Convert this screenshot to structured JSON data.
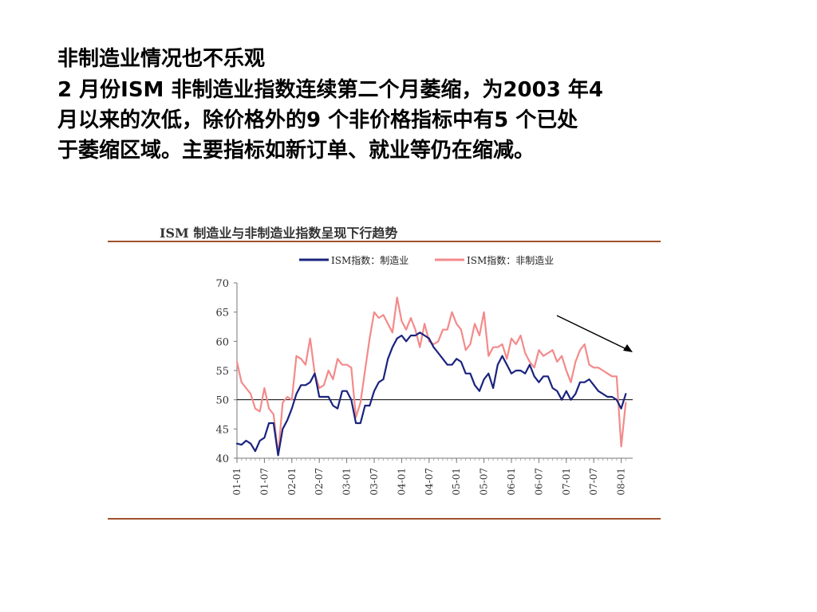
{
  "slide": {
    "heading": "非制造业情况也不乐观",
    "body_lines": [
      "2 月份ISM 非制造业指数连续第二个月萎缩，为2003 年4",
      "月以来的次低，除价格外的9 个非价格指标中有5 个已处",
      "于萎缩区域。主要指标如新订单、就业等仍在缩减。"
    ]
  },
  "chart_data": {
    "type": "line",
    "title": "ISM 制造业与非制造业指数呈现下行趋势",
    "x_tick_labels": [
      "01-01",
      "01-07",
      "02-01",
      "02-07",
      "03-01",
      "03-07",
      "04-01",
      "04-07",
      "05-01",
      "05-07",
      "06-01",
      "06-07",
      "07-01",
      "07-07",
      "08-01"
    ],
    "x_start": "2001-01",
    "x_end": "2008-02",
    "x_interval": "monthly",
    "ylim": [
      40,
      70
    ],
    "yticks": [
      70,
      65,
      60,
      55,
      50,
      45,
      40
    ],
    "reference_line": 50,
    "legend_position": "top",
    "annotation": "downward arrow (top-right)",
    "series": [
      {
        "name": "ISM指数：制造业",
        "color": "#1a237e",
        "values": [
          42.5,
          42.3,
          43.0,
          42.5,
          41.2,
          43.0,
          43.5,
          46.0,
          46.0,
          40.5,
          45.0,
          46.5,
          48.5,
          51.0,
          52.5,
          52.5,
          53.0,
          54.5,
          50.5,
          50.5,
          50.5,
          49.0,
          48.5,
          51.5,
          51.5,
          50.0,
          46.0,
          46.0,
          49.0,
          49.0,
          51.5,
          53.0,
          53.5,
          57.0,
          59.0,
          60.5,
          61.0,
          60.0,
          61.0,
          61.0,
          61.5,
          61.0,
          60.5,
          59.0,
          58.0,
          57.0,
          56.0,
          56.0,
          57.0,
          56.5,
          54.5,
          54.5,
          52.5,
          51.5,
          53.5,
          54.5,
          52.0,
          56.0,
          57.5,
          56.0,
          54.5,
          55.0,
          55.0,
          54.5,
          56.0,
          54.0,
          53.0,
          54.0,
          54.0,
          52.0,
          51.5,
          50.0,
          51.5,
          50.0,
          51.0,
          53.0,
          53.0,
          53.5,
          52.5,
          51.5,
          51.0,
          50.5,
          50.5,
          50.0,
          48.5,
          51.0
        ]
      },
      {
        "name": "ISM指数：非制造业",
        "color": "#f48a8a",
        "values": [
          56.5,
          53.0,
          52.0,
          51.0,
          48.5,
          48.0,
          52.0,
          48.5,
          47.5,
          40.5,
          49.5,
          50.5,
          50.0,
          57.5,
          57.0,
          56.0,
          60.5,
          54.5,
          52.0,
          52.5,
          55.0,
          53.5,
          57.0,
          56.0,
          56.0,
          55.5,
          47.0,
          49.5,
          55.0,
          60.5,
          65.0,
          64.0,
          64.5,
          63.0,
          61.5,
          67.5,
          63.5,
          62.0,
          64.0,
          62.0,
          59.0,
          63.0,
          60.0,
          59.5,
          60.0,
          62.0,
          62.0,
          65.0,
          63.0,
          62.0,
          58.5,
          59.5,
          63.0,
          61.0,
          65.0,
          57.5,
          59.0,
          59.0,
          59.5,
          57.0,
          60.5,
          59.5,
          61.0,
          58.0,
          56.5,
          55.5,
          58.5,
          57.5,
          58.0,
          58.5,
          56.5,
          57.5,
          55.0,
          53.0,
          56.5,
          58.5,
          59.5,
          56.0,
          55.5,
          55.5,
          55.0,
          54.5,
          54.0,
          54.0,
          42.0,
          49.5
        ]
      }
    ]
  }
}
